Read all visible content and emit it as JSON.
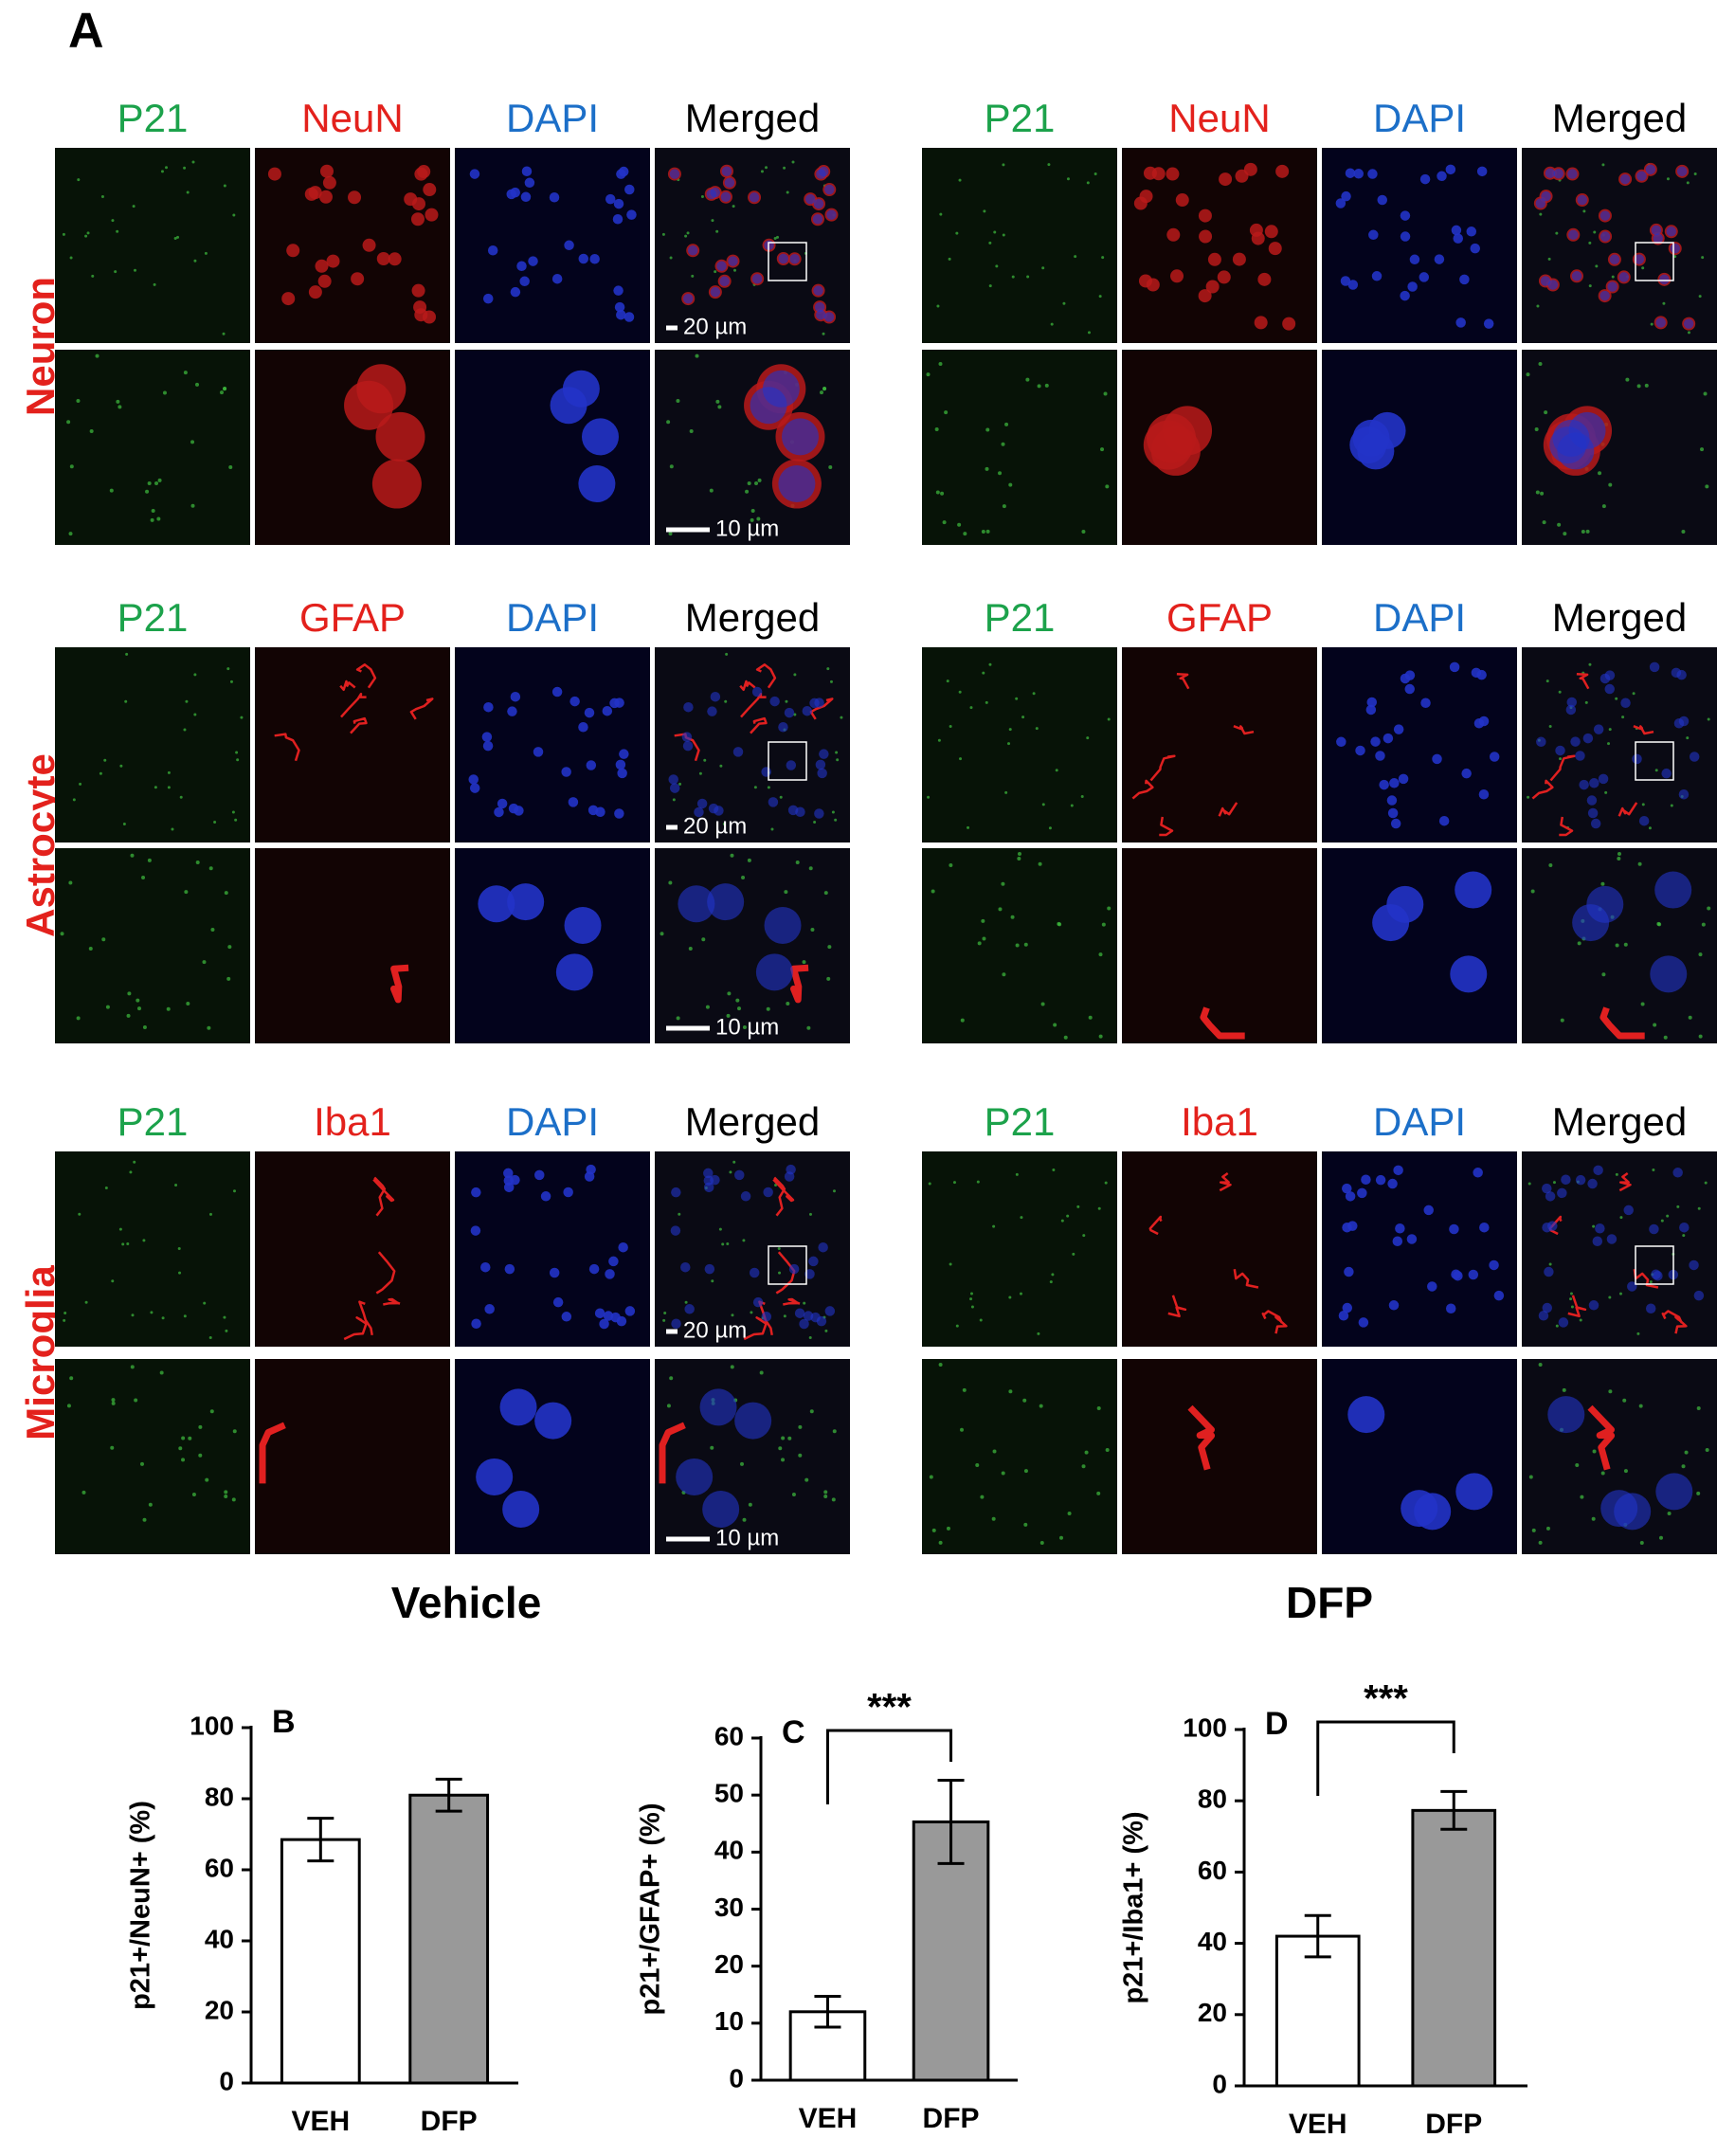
{
  "panel_a": {
    "label": "A",
    "groups": [
      "Vehicle",
      "DFP"
    ],
    "rows": [
      {
        "label": "Neuron",
        "channels": [
          "P21",
          "NeuN",
          "DAPI",
          "Merged"
        ],
        "scale_bars": [
          "20 µm",
          "10 µm"
        ]
      },
      {
        "label": "Astrocyte",
        "channels": [
          "P21",
          "GFAP",
          "DAPI",
          "Merged"
        ],
        "scale_bars": [
          "20 µm",
          "10 µm"
        ]
      },
      {
        "label": "Microglia",
        "channels": [
          "P21",
          "Iba1",
          "DAPI",
          "Merged"
        ],
        "scale_bars": [
          "20 µm",
          "10 µm"
        ]
      }
    ]
  },
  "chart_data": [
    {
      "type": "bar",
      "panel_label": "B",
      "y_label": "p21+/NeuN+ (%)",
      "categories": [
        "VEH",
        "DFP"
      ],
      "values": [
        68.5,
        81
      ],
      "errors": [
        6,
        4.5
      ],
      "colors": [
        "#ffffff",
        "#999999"
      ],
      "ylim": [
        0,
        100
      ],
      "yticks": [
        0,
        20,
        40,
        60,
        80,
        100
      ]
    },
    {
      "type": "bar",
      "panel_label": "C",
      "y_label": "p21+/GFAP+ (%)",
      "categories": [
        "VEH",
        "DFP"
      ],
      "values": [
        12,
        45.3
      ],
      "errors": [
        2.7,
        7.3
      ],
      "colors": [
        "#ffffff",
        "#999999"
      ],
      "ylim": [
        0,
        60
      ],
      "yticks": [
        0,
        10,
        20,
        30,
        40,
        50,
        60
      ],
      "significance": "***"
    },
    {
      "type": "bar",
      "panel_label": "D",
      "y_label": "p21+/Iba1+ (%)",
      "categories": [
        "VEH",
        "DFP"
      ],
      "values": [
        42,
        77.3
      ],
      "errors": [
        5.8,
        5.3
      ],
      "colors": [
        "#ffffff",
        "#999999"
      ],
      "ylim": [
        0,
        100
      ],
      "yticks": [
        0,
        20,
        40,
        60,
        80,
        100
      ],
      "significance": "***"
    }
  ]
}
